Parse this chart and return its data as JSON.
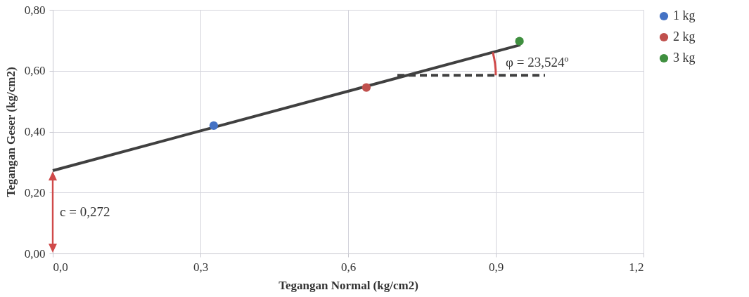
{
  "chart_data": {
    "type": "scatter",
    "xlabel": "Tegangan Normal (kg/cm2)",
    "ylabel": "Tegangan Geser (kg/cm2)",
    "xlim": [
      0,
      1.2
    ],
    "xticks": [
      {
        "value": 0,
        "label": "0,0"
      },
      {
        "value": 0.3,
        "label": "0,3"
      },
      {
        "value": 0.6,
        "label": "0,6"
      },
      {
        "value": 0.9,
        "label": "0,9"
      },
      {
        "value": 1.2,
        "label": "1,2"
      }
    ],
    "ylim": [
      0,
      0.8
    ],
    "yticks": [
      {
        "value": 0,
        "label": "0,00"
      },
      {
        "value": 0.2,
        "label": "0,20"
      },
      {
        "value": 0.4,
        "label": "0,40"
      },
      {
        "value": 0.6,
        "label": "0,60"
      },
      {
        "value": 0.8,
        "label": "0,80"
      }
    ],
    "grid": true,
    "legend": "right",
    "marker": "circle",
    "series": [
      {
        "type": "line",
        "color": "#404040",
        "x": [
          0,
          0.95
        ],
        "values": [
          0.272,
          0.685
        ],
        "line_style": "solid",
        "marker": "none"
      },
      {
        "type": "line",
        "color": "#404040",
        "x": [
          0.7,
          1.0
        ],
        "values": [
          0.585,
          0.585
        ],
        "line_style": "dashed",
        "marker": "none"
      },
      {
        "name": "1 kg",
        "color": "#4472c4",
        "x": [
          0.327
        ],
        "values": [
          0.42
        ]
      },
      {
        "name": "2 kg",
        "color": "#c0504d",
        "x": [
          0.637
        ],
        "values": [
          0.545
        ]
      },
      {
        "name": "3 kg",
        "color": "#3f8f3f",
        "x": [
          0.948
        ],
        "values": [
          0.697
        ]
      }
    ],
    "annotations": [
      {
        "text": "c = 0,272",
        "x": 0,
        "y": 0.272
      },
      {
        "text": "φ = 23,524º",
        "x": 0.9,
        "y": 0.585
      }
    ]
  }
}
